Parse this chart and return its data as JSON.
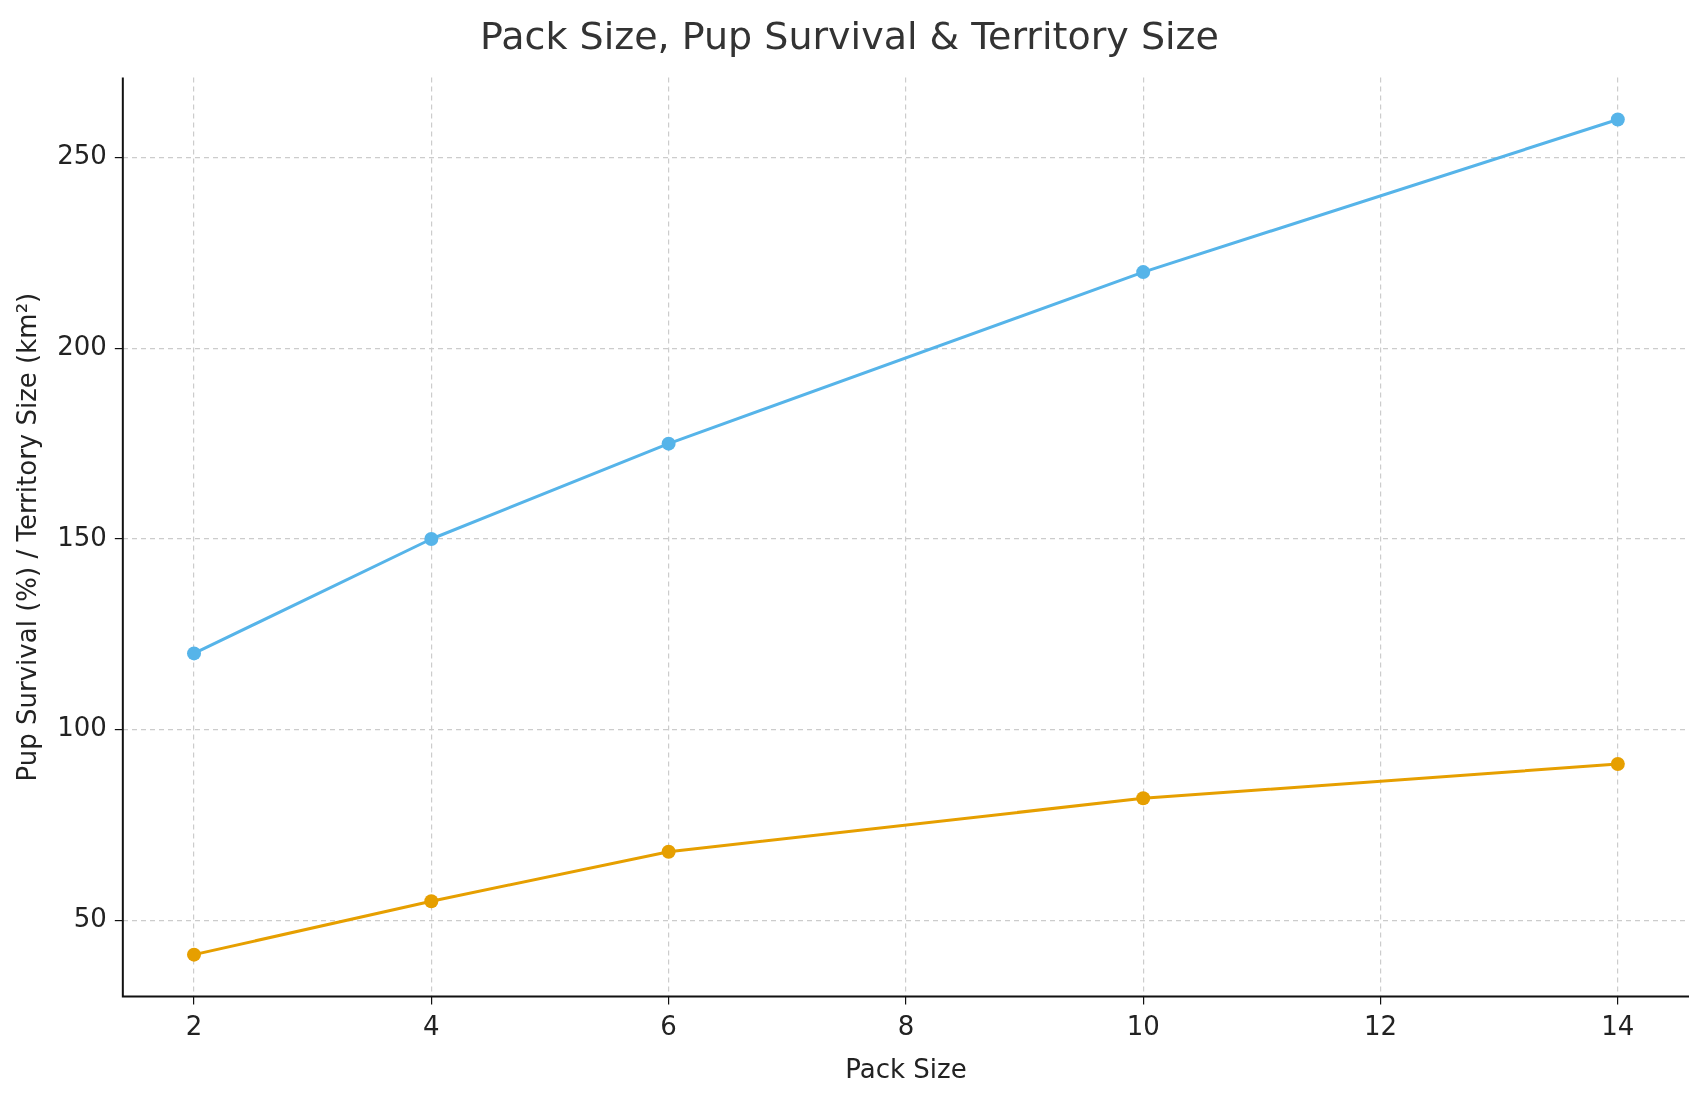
{
  "chart_data": {
    "type": "line",
    "title": "Pack Size, Pup Survival & Territory Size",
    "xlabel": "Pack Size",
    "ylabel": "Pup Survival (%) / Territory Size (km²)",
    "x": [
      2,
      4,
      6,
      10,
      14
    ],
    "series": [
      {
        "color": "#56b4e9",
        "values": [
          120,
          150,
          175,
          220,
          260
        ]
      },
      {
        "color": "#e69f00",
        "values": [
          41,
          55,
          68,
          82,
          91
        ]
      }
    ],
    "xlim": [
      1.4,
      14.6
    ],
    "xticks": [
      2,
      4,
      6,
      8,
      10,
      12,
      14
    ],
    "ylim": [
      30,
      271
    ],
    "yticks": [
      50,
      100,
      150,
      200,
      250
    ],
    "grid": true,
    "legend": false,
    "marker": "circle",
    "line_style": "solid"
  }
}
